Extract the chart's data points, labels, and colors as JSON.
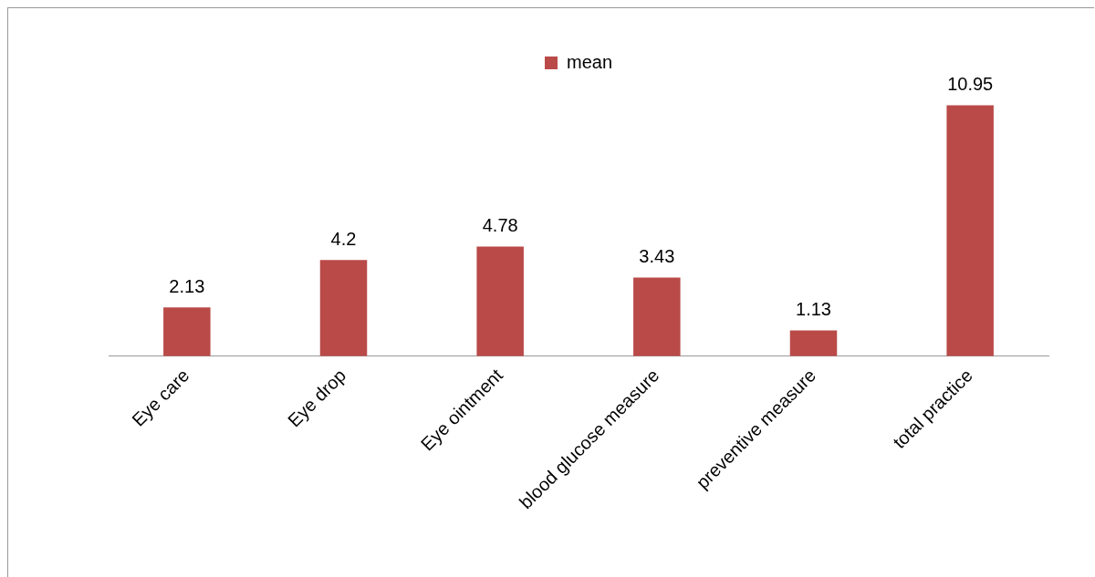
{
  "chart_data": {
    "type": "bar",
    "categories": [
      "Eye care",
      "Eye drop",
      "Eye ointment",
      "blood glucose measure",
      "preventive measure",
      "total practice"
    ],
    "series": [
      {
        "name": "mean",
        "color": "#b94a48",
        "values": [
          2.13,
          4.2,
          4.78,
          3.43,
          1.13,
          10.95
        ]
      }
    ],
    "data_labels": true,
    "legend": "top",
    "grid": false,
    "tick_labels": "x"
  }
}
